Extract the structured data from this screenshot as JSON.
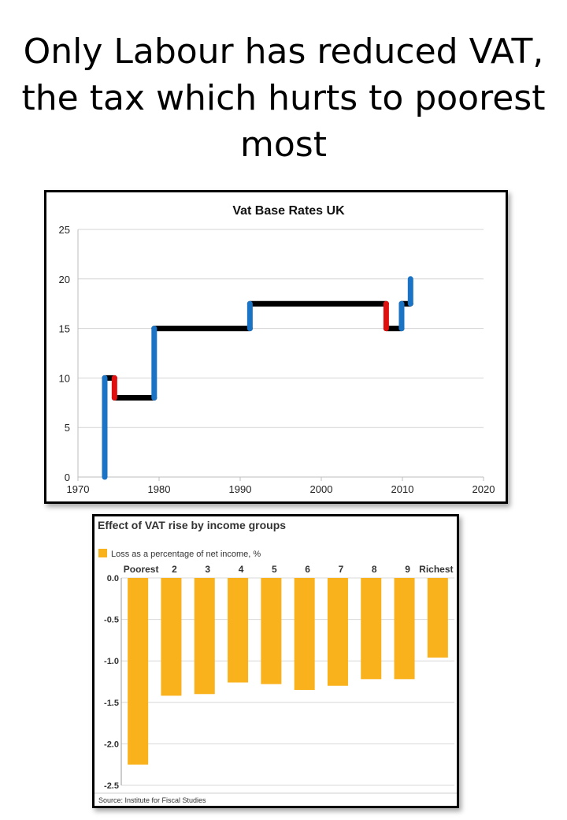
{
  "headline": "Only Labour has reduced VAT, the tax which hurts to poorest most",
  "colors": {
    "increase": "#1a73c4",
    "decrease": "#e01010",
    "rate": "#000000",
    "bar": "#f9b21b"
  },
  "charts": [
    {
      "chart_data": {
        "type": "line",
        "title": "Vat Base Rates UK",
        "xlabel": "",
        "ylabel": "",
        "xlim": [
          1970,
          2020
        ],
        "ylim": [
          0,
          25
        ],
        "x_ticks": [
          1970,
          1980,
          1990,
          2000,
          2010,
          2020
        ],
        "y_ticks": [
          0,
          5,
          10,
          15,
          20,
          25
        ],
        "grid": "horizontal",
        "legend": "none",
        "series": [
          {
            "points": [
              [
                1973.3,
                0
              ],
              [
                1973.3,
                10
              ],
              [
                1974.5,
                10
              ],
              [
                1974.5,
                8
              ],
              [
                1979.4,
                8
              ],
              [
                1979.4,
                15
              ],
              [
                1991.2,
                15
              ],
              [
                1991.2,
                17.5
              ],
              [
                2008.0,
                17.5
              ],
              [
                2008.0,
                15
              ],
              [
                2009.9,
                15
              ],
              [
                2009.9,
                17.5
              ],
              [
                2011.0,
                17.5
              ],
              [
                2011.0,
                20
              ]
            ]
          }
        ]
      }
    },
    {
      "chart_data": {
        "type": "bar",
        "title": "Effect of VAT rise by income groups",
        "legend_label": "Loss as a percentage of net income, %",
        "source": "Source: Institute for Fiscal Studies",
        "categories": [
          "Poorest",
          "2",
          "3",
          "4",
          "5",
          "6",
          "7",
          "8",
          "9",
          "Richest"
        ],
        "values": [
          -2.25,
          -1.42,
          -1.4,
          -1.26,
          -1.28,
          -1.35,
          -1.3,
          -1.22,
          -1.22,
          -0.96
        ],
        "ylim": [
          -2.5,
          0
        ],
        "y_ticks": [
          "0.0",
          "-0.5",
          "-1.0",
          "-1.5",
          "-2.0",
          "-2.5"
        ],
        "xlabel": "",
        "ylabel": "",
        "grid": "horizontal",
        "legend": "top-left"
      }
    }
  ]
}
